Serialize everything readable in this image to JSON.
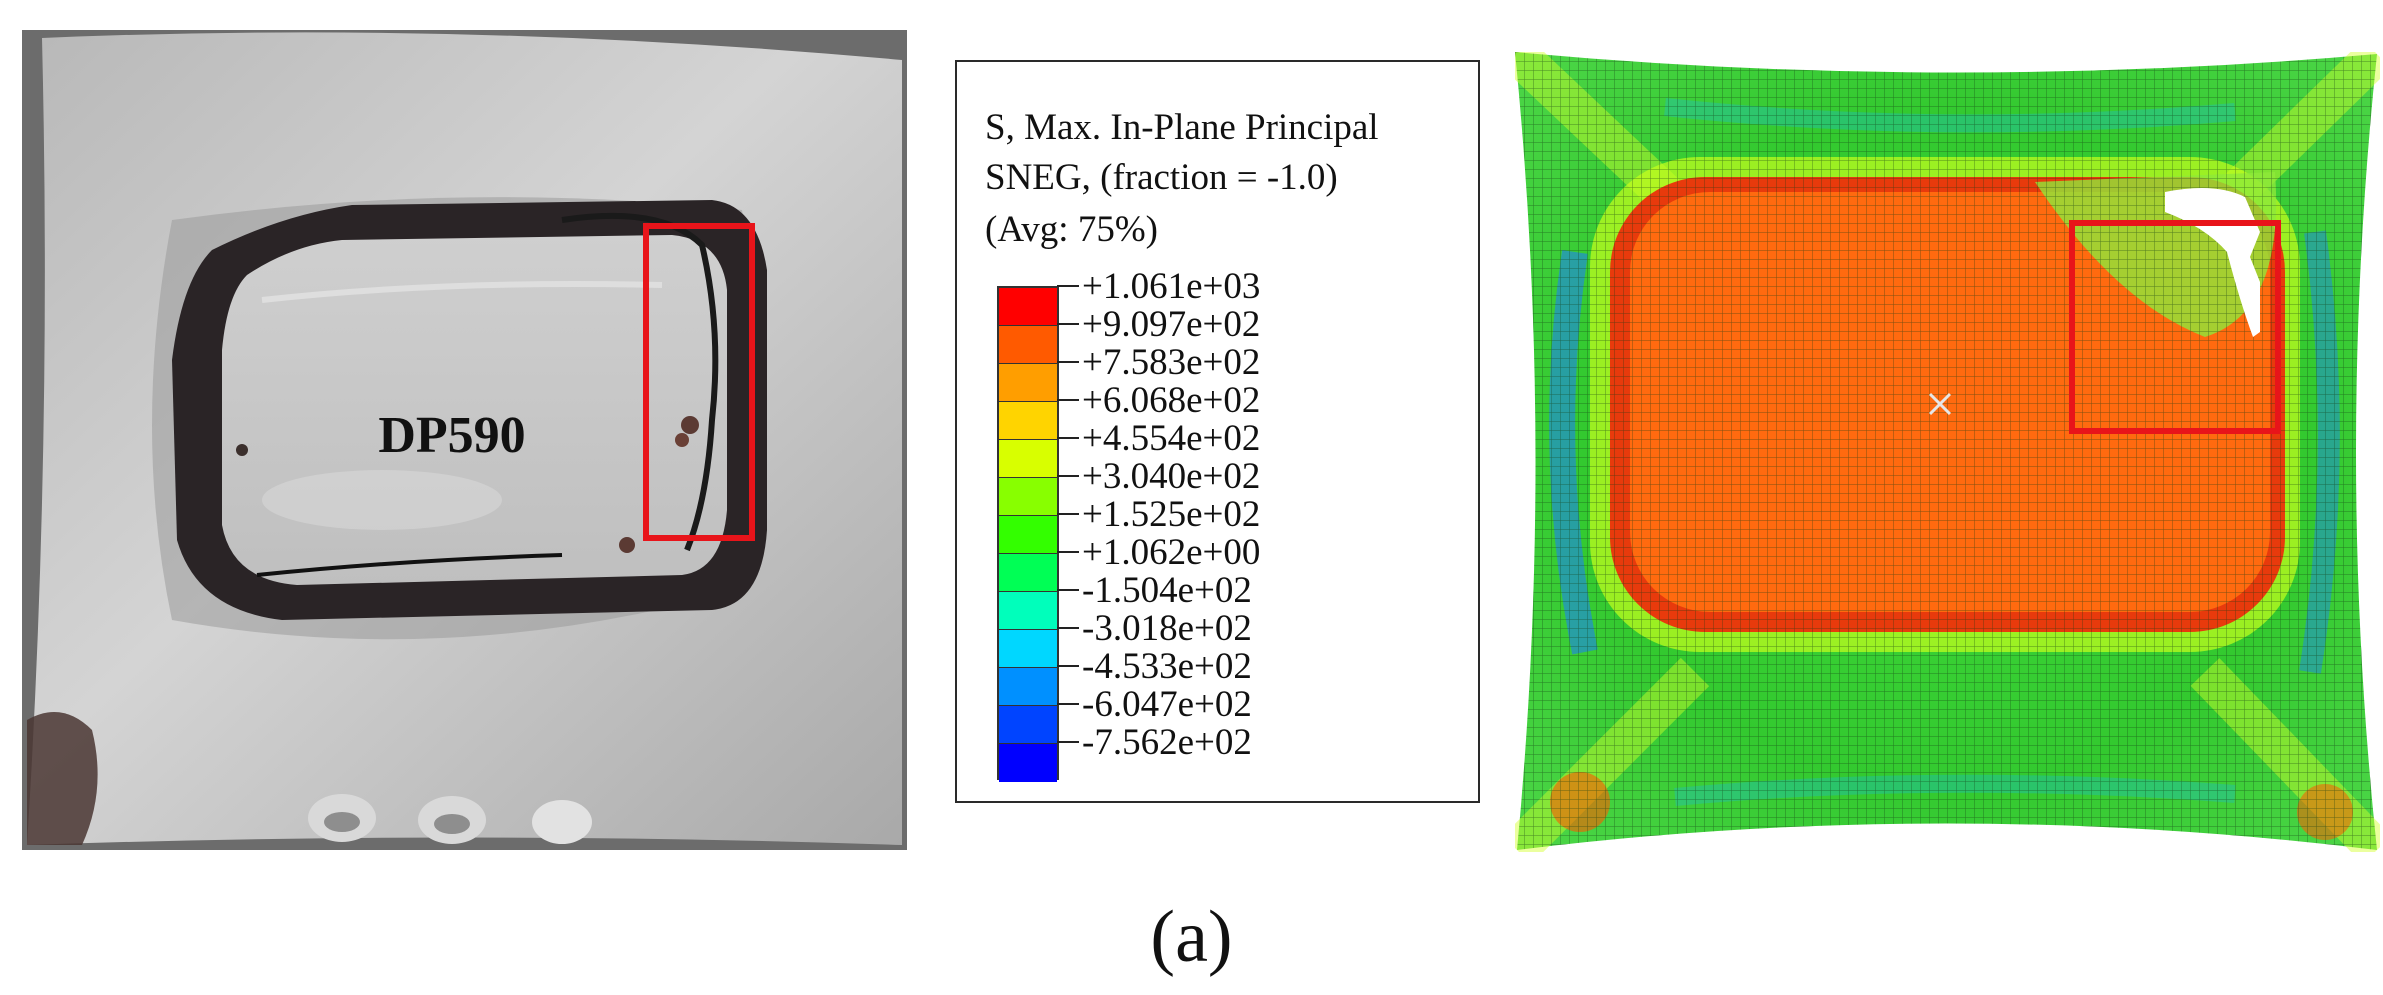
{
  "photo": {
    "label": "DP590"
  },
  "legend": {
    "title_lines": [
      "S, Max. In-Plane Principal",
      "SNEG, (fraction = -1.0)",
      "(Avg: 75%)"
    ],
    "tick_labels": [
      "+1.061e+03",
      "+9.097e+02",
      "+7.583e+02",
      "+6.068e+02",
      "+4.554e+02",
      "+3.040e+02",
      "+1.525e+02",
      "+1.062e+00",
      "-1.504e+02",
      "-3.018e+02",
      "-4.533e+02",
      "-6.047e+02",
      "-7.562e+02"
    ],
    "colors": [
      "#ff0000",
      "#ff5a00",
      "#ff9e00",
      "#ffd400",
      "#d8ff00",
      "#88ff00",
      "#33ff00",
      "#00ff55",
      "#00ffbb",
      "#00d7ff",
      "#0090ff",
      "#0044ff",
      "#0000ff"
    ]
  },
  "highlight_color": "#e8141a",
  "caption": "(a)"
}
